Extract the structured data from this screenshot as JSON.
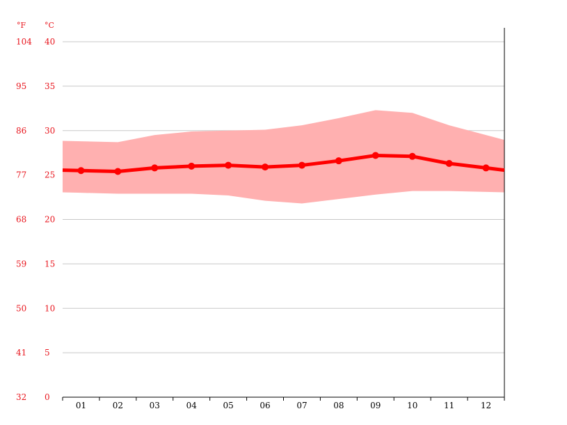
{
  "chart_data": {
    "type": "line",
    "title": "",
    "xlabel": "",
    "ylabel": "",
    "units": {
      "left": "°F",
      "right": "°C"
    },
    "categories": [
      "01",
      "02",
      "03",
      "04",
      "05",
      "06",
      "07",
      "08",
      "09",
      "10",
      "11",
      "12"
    ],
    "y_ticks_c": [
      "0",
      "5",
      "10",
      "15",
      "20",
      "25",
      "30",
      "35",
      "40"
    ],
    "y_ticks_f": [
      "32",
      "41",
      "50",
      "59",
      "68",
      "77",
      "86",
      "95",
      "104"
    ],
    "ylim": [
      0,
      40
    ],
    "grid": true,
    "series": [
      {
        "values": [
          25.5,
          25.4,
          25.8,
          26.0,
          26.1,
          25.9,
          26.1,
          26.6,
          27.2,
          27.1,
          26.3,
          25.8
        ]
      },
      {
        "values": [
          28.8,
          28.7,
          29.5,
          29.9,
          30.0,
          30.1,
          30.6,
          31.4,
          32.3,
          32.0,
          30.6,
          29.5
        ]
      },
      {
        "values": [
          23.0,
          22.9,
          22.9,
          22.9,
          22.7,
          22.1,
          21.8,
          22.3,
          22.8,
          23.2,
          23.2,
          23.1
        ]
      }
    ],
    "colors": {
      "line": "#ff0000",
      "band": "#ffb0b0",
      "grid": "#c8c8c8",
      "axis": "#000000",
      "label": "#e8141c"
    }
  }
}
